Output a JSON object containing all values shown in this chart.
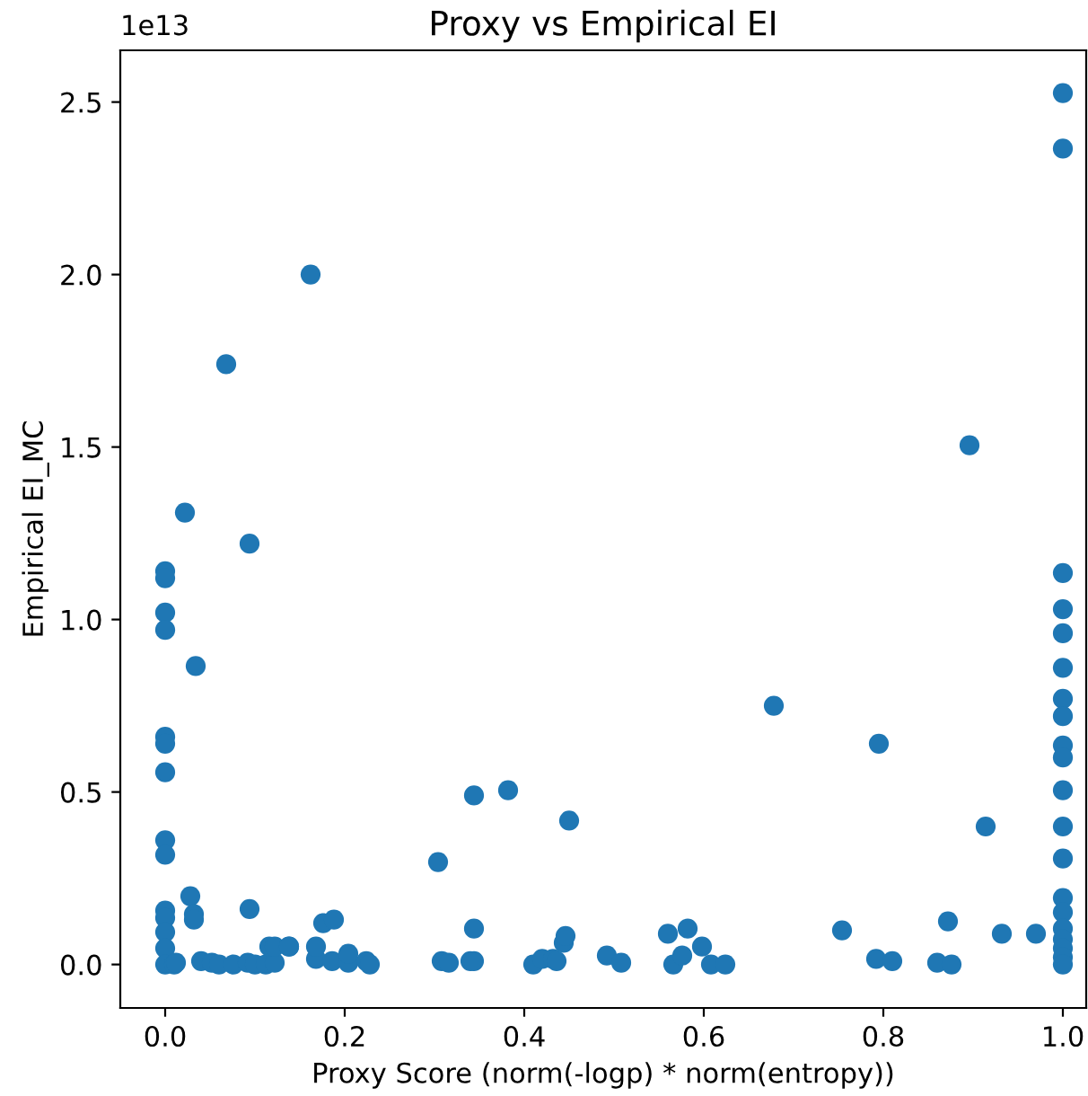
{
  "chart_data": {
    "type": "scatter",
    "title": "Proxy vs Empirical EI",
    "xlabel": "Proxy Score (norm(-logp) * norm(entropy))",
    "ylabel": "Empirical EI_MC",
    "annotations": [
      "1e13"
    ],
    "marker": "circle",
    "grid": false,
    "legend": false,
    "xlim": [
      -0.05,
      1.026
    ],
    "xticks": [
      {
        "value": 0,
        "label": "0.0"
      },
      0.2,
      0.4,
      0.6,
      0.8,
      {
        "value": 1,
        "label": "1.0"
      }
    ],
    "ylim": [
      -0.126,
      2.65
    ],
    "yticks": [
      {
        "value": 0,
        "label": "0.0"
      },
      0.5,
      {
        "value": 1,
        "label": "1.0"
      },
      1.5,
      {
        "value": 2,
        "label": "2.0"
      },
      2.5
    ],
    "series": [
      {
        "color": "#1f77b4",
        "x": [
          1.0,
          1.0,
          1.0,
          1.0,
          1.0,
          1.0,
          1.0,
          1.0,
          1.0,
          1.0,
          1.0,
          1.0,
          1.0,
          1.0,
          1.0,
          1.0,
          1.0,
          1.0,
          1.0,
          1.0,
          0.754,
          0.795,
          0.792,
          0.81,
          0.86,
          0.876,
          0.872,
          0.914,
          0.932,
          0.97,
          0.896,
          0.678,
          0.344,
          0.382,
          0.45,
          0.304,
          0.344,
          0.308,
          0.316,
          0.34,
          0.344,
          0.41,
          0.42,
          0.432,
          0.436,
          0.444,
          0.446,
          0.492,
          0.508,
          0.56,
          0.582,
          0.566,
          0.576,
          0.598,
          0.608,
          0.624,
          0.022,
          0.094,
          0.0,
          0.0,
          0.0,
          0.0,
          0.0,
          0.0,
          0.0,
          0.0,
          0.0,
          0.0,
          0.0,
          0.0,
          0.0,
          0.0,
          0.034,
          0.028,
          0.032,
          0.032,
          0.094,
          0.176,
          0.188,
          0.01,
          0.012,
          0.04,
          0.052,
          0.06,
          0.076,
          0.092,
          0.1,
          0.112,
          0.122,
          0.138,
          0.168,
          0.186,
          0.204,
          0.224,
          0.228,
          0.116,
          0.122,
          0.138,
          0.168,
          0.204,
          0.162,
          0.068
        ],
        "values": [
          2.526,
          2.365,
          1.135,
          1.03,
          0.96,
          0.86,
          0.77,
          0.72,
          0.635,
          0.6,
          0.505,
          0.4,
          0.307,
          0.193,
          0.151,
          0.104,
          0.073,
          0.047,
          0.021,
          0.0,
          0.099,
          0.64,
          0.016,
          0.01,
          0.005,
          0.0,
          0.125,
          0.4,
          0.089,
          0.089,
          1.505,
          0.75,
          0.49,
          0.505,
          0.417,
          0.297,
          0.104,
          0.01,
          0.005,
          0.01,
          0.01,
          0.0,
          0.016,
          0.016,
          0.01,
          0.063,
          0.083,
          0.026,
          0.005,
          0.089,
          0.104,
          0.0,
          0.026,
          0.052,
          0.0,
          0.0,
          1.31,
          1.22,
          1.14,
          1.12,
          1.02,
          0.97,
          0.66,
          0.64,
          0.557,
          0.36,
          0.318,
          0.156,
          0.135,
          0.094,
          0.047,
          0.0,
          0.865,
          0.198,
          0.146,
          0.13,
          0.161,
          0.12,
          0.13,
          0.0,
          0.005,
          0.01,
          0.005,
          0.0,
          0.0,
          0.005,
          0.0,
          0.0,
          0.005,
          0.052,
          0.016,
          0.01,
          0.005,
          0.01,
          0.0,
          0.052,
          0.052,
          0.052,
          0.052,
          0.031,
          2.0,
          1.74
        ]
      }
    ]
  }
}
